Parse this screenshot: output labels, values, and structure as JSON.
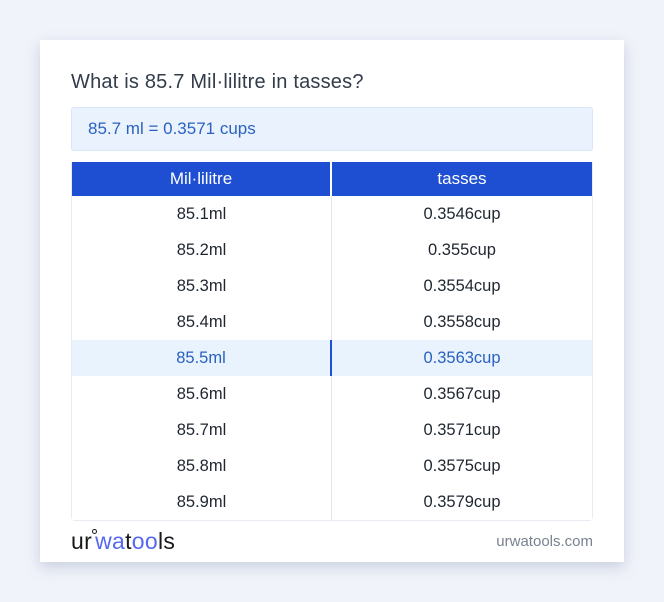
{
  "page": {
    "title": "What is 85.7 Mil·lilitre in tasses?"
  },
  "result": {
    "text": "85.7 ml = 0.3571 cups"
  },
  "table": {
    "headers": [
      "Mil·lilitre",
      "tasses"
    ],
    "rows": [
      {
        "ml": "85.1ml",
        "cup": "0.3546cup"
      },
      {
        "ml": "85.2ml",
        "cup": "0.355cup"
      },
      {
        "ml": "85.3ml",
        "cup": "0.3554cup"
      },
      {
        "ml": "85.4ml",
        "cup": "0.3558cup"
      },
      {
        "ml": "85.5ml",
        "cup": "0.3563cup"
      },
      {
        "ml": "85.6ml",
        "cup": "0.3567cup"
      },
      {
        "ml": "85.7ml",
        "cup": "0.3571cup"
      },
      {
        "ml": "85.8ml",
        "cup": "0.3575cup"
      },
      {
        "ml": "85.9ml",
        "cup": "0.3579cup"
      }
    ],
    "highlighted_row_index": 4
  },
  "footer": {
    "logo": {
      "part1": "ur",
      "part2": "wa",
      "part3": "t",
      "part4": "oo",
      "part5": "ls"
    },
    "site": "urwatools.com"
  },
  "colors": {
    "header_blue": "#1e4fd3",
    "result_blue_text": "#2b62c1",
    "result_bg": "#e9f2fd",
    "highlight_bg": "#e9f3fe",
    "logo_blue": "#5568ef",
    "page_bg": "#f1f3fa"
  }
}
